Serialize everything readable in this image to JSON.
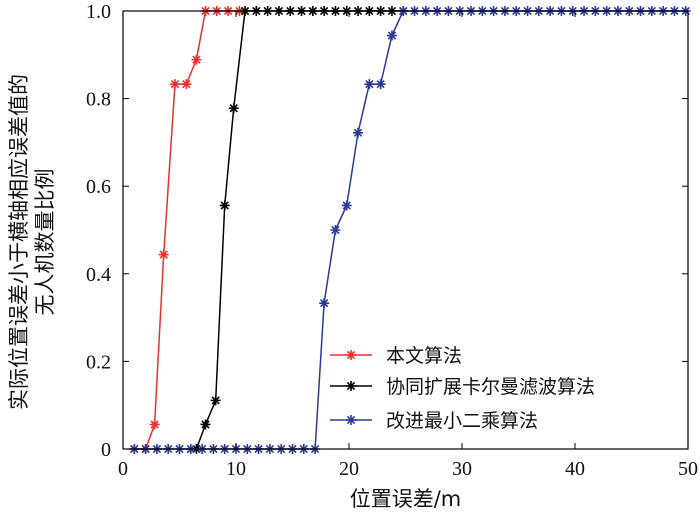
{
  "chart_data": {
    "type": "line",
    "title": "",
    "xlabel": "位置误差/m",
    "ylabel": [
      "实际位置误差小于横轴相应误差值的",
      "无人机数量比例"
    ],
    "xlim": [
      0,
      50
    ],
    "ylim": [
      0,
      1.0
    ],
    "x_ticks": [
      "0",
      "10",
      "20",
      "30",
      "40",
      "50"
    ],
    "y_ticks": [
      "0",
      "0.2",
      "0.4",
      "0.6",
      "0.8",
      "1.0"
    ],
    "grid": false,
    "legend_position": "bottom-center",
    "series": [
      {
        "name": "本文算法",
        "color": "#e8312f",
        "marker": "asterisk",
        "points": [
          [
            1,
            0.0
          ],
          [
            2,
            0.0
          ],
          [
            2.8,
            0.056
          ],
          [
            3.6,
            0.444
          ],
          [
            4.6,
            0.833
          ],
          [
            5.6,
            0.833
          ],
          [
            6.5,
            0.889
          ],
          [
            7.3,
            1.0
          ],
          [
            8.3,
            1.0
          ],
          [
            9.3,
            1.0
          ],
          [
            10.3,
            1.0
          ]
        ]
      },
      {
        "name": "协同扩展卡尔曼滤波算法",
        "color": "#000000",
        "marker": "asterisk",
        "points": [
          [
            6.5,
            0.0
          ],
          [
            7.3,
            0.056
          ],
          [
            8.2,
            0.111
          ],
          [
            9.0,
            0.556
          ],
          [
            9.8,
            0.778
          ],
          [
            10.8,
            1.0
          ],
          [
            11.8,
            1.0
          ],
          [
            12.8,
            1.0
          ],
          [
            13.8,
            1.0
          ],
          [
            14.8,
            1.0
          ],
          [
            15.8,
            1.0
          ],
          [
            16.8,
            1.0
          ],
          [
            17.8,
            1.0
          ],
          [
            18.8,
            1.0
          ],
          [
            19.8,
            1.0
          ],
          [
            20.8,
            1.0
          ],
          [
            21.8,
            1.0
          ],
          [
            22.8,
            1.0
          ],
          [
            23.8,
            1.0
          ],
          [
            24.8,
            1.0
          ]
        ]
      },
      {
        "name": "改进最小二乘算法",
        "color": "#2b3a98",
        "marker": "asterisk",
        "points": [
          [
            1,
            0.0
          ],
          [
            2,
            0.0
          ],
          [
            3,
            0.0
          ],
          [
            4,
            0.0
          ],
          [
            5,
            0.0
          ],
          [
            6,
            0.0
          ],
          [
            7,
            0.0
          ],
          [
            8,
            0.0
          ],
          [
            9,
            0.0
          ],
          [
            10,
            0.0
          ],
          [
            11,
            0.0
          ],
          [
            12,
            0.0
          ],
          [
            13,
            0.0
          ],
          [
            14,
            0.0
          ],
          [
            15,
            0.0
          ],
          [
            16,
            0.0
          ],
          [
            17,
            0.0
          ],
          [
            17.8,
            0.333
          ],
          [
            18.8,
            0.5
          ],
          [
            19.8,
            0.556
          ],
          [
            20.8,
            0.722
          ],
          [
            21.8,
            0.833
          ],
          [
            22.8,
            0.833
          ],
          [
            23.8,
            0.944
          ],
          [
            24.8,
            1.0
          ],
          [
            25.8,
            1.0
          ],
          [
            26.8,
            1.0
          ],
          [
            27.8,
            1.0
          ],
          [
            28.8,
            1.0
          ],
          [
            29.8,
            1.0
          ],
          [
            30.8,
            1.0
          ],
          [
            31.8,
            1.0
          ],
          [
            32.8,
            1.0
          ],
          [
            33.8,
            1.0
          ],
          [
            34.8,
            1.0
          ],
          [
            35.8,
            1.0
          ],
          [
            36.8,
            1.0
          ],
          [
            37.8,
            1.0
          ],
          [
            38.8,
            1.0
          ],
          [
            39.8,
            1.0
          ],
          [
            40.8,
            1.0
          ],
          [
            41.8,
            1.0
          ],
          [
            42.8,
            1.0
          ],
          [
            43.8,
            1.0
          ],
          [
            44.8,
            1.0
          ],
          [
            45.8,
            1.0
          ],
          [
            46.8,
            1.0
          ],
          [
            47.8,
            1.0
          ],
          [
            48.8,
            1.0
          ],
          [
            49.8,
            1.0
          ]
        ]
      }
    ]
  }
}
